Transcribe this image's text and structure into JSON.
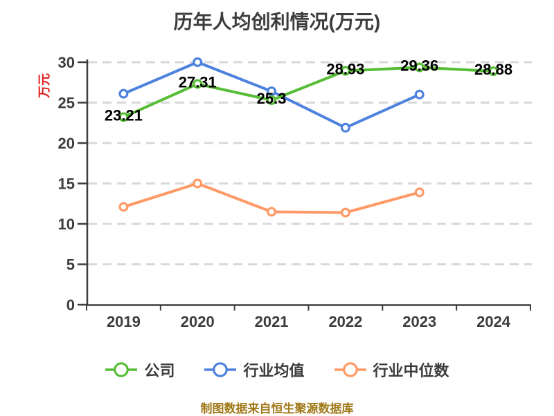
{
  "chart_data": {
    "type": "line",
    "title": "历年人均创利情况(万元)",
    "ylabel": "万元",
    "footer": "制图数据来自恒生聚源数据库",
    "categories": [
      "2019",
      "2020",
      "2021",
      "2022",
      "2023",
      "2024"
    ],
    "yticks": [
      "0",
      "5",
      "10",
      "15",
      "20",
      "25",
      "30"
    ],
    "ylim": [
      0,
      30
    ],
    "grid": "horizontal-dashed",
    "legend_position": "bottom",
    "series": [
      {
        "key": "company",
        "name": "公司",
        "color": "#56bd36",
        "values": [
          23.21,
          27.31,
          25.3,
          28.93,
          29.36,
          28.88
        ],
        "point_labels": [
          "23.21",
          "27.31",
          "25.3",
          "28.93",
          "29.36",
          "28.88"
        ]
      },
      {
        "key": "industry-average",
        "name": "行业均值",
        "color": "#4d82de",
        "values": [
          26.1,
          30,
          26.4,
          21.9,
          26
        ]
      },
      {
        "key": "industry-median",
        "name": "行业中位数",
        "color": "#ff9966",
        "values": [
          12.1,
          15,
          11.5,
          11.4,
          13.9
        ]
      }
    ]
  },
  "colors": {
    "title": "#3d3d3d",
    "axis": "#3d3d3d",
    "tick_label": "#3d3d3d",
    "gridline": "#d8d8d8",
    "ylabel": "#e01f1f",
    "legend_text": "#3d3d3d",
    "footer": "#a07818",
    "point_label": "#000000",
    "marker_fill": "#ffffff",
    "background": "#ffffff"
  }
}
